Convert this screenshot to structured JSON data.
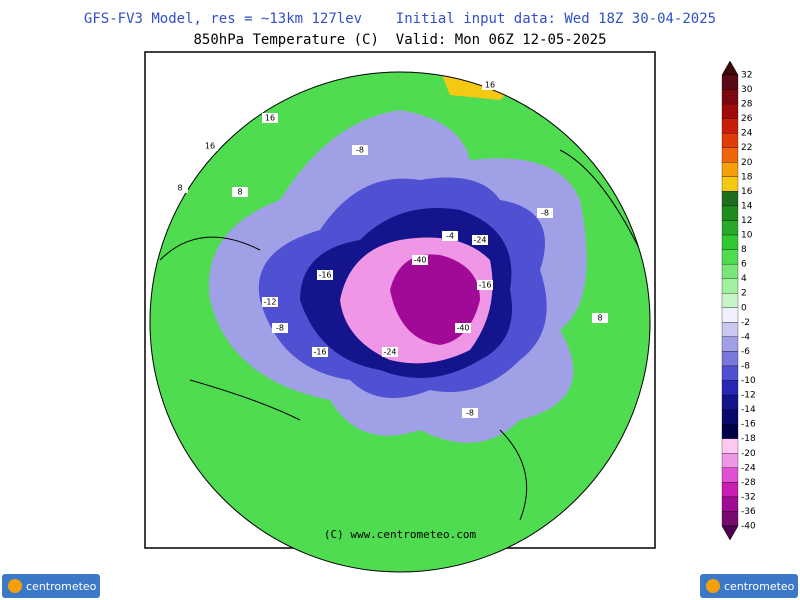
{
  "header": {
    "model_line": "GFS-FV3 Model, res = ~13km 127lev    Initial input data: Wed 18Z 30-04-2025",
    "field_line": "850hPa Temperature (C)  Valid: Mon 06Z 12-05-2025"
  },
  "map": {
    "labels": [
      "-8",
      "-8",
      "-8",
      "-8",
      "-16",
      "-16",
      "-16",
      "-24",
      "-24",
      "-40",
      "-40",
      "8",
      "8",
      "8",
      "16",
      "16",
      "16",
      "-12",
      "-4"
    ],
    "copyright": "(C) www.centrometeo.com"
  },
  "colorbar": {
    "labels": [
      32,
      30,
      28,
      26,
      24,
      22,
      20,
      18,
      16,
      14,
      12,
      10,
      8,
      6,
      4,
      2,
      0,
      -2,
      -4,
      -6,
      -8,
      -10,
      -12,
      -14,
      -16,
      -18,
      -20,
      -24,
      -28,
      -32,
      -36,
      -40
    ],
    "colors": [
      "#5a0a14",
      "#7a0a10",
      "#a00a0a",
      "#c81e0a",
      "#e03c0a",
      "#f0640a",
      "#f5a00a",
      "#f5c814",
      "#1e6e1e",
      "#1e8c1e",
      "#28aa28",
      "#32c832",
      "#50dc50",
      "#78e678",
      "#a0f0a0",
      "#c8f5c8",
      "#f0f0ff",
      "#c8c8f0",
      "#a0a0e6",
      "#7878dc",
      "#5050d2",
      "#2828b4",
      "#14148c",
      "#0a0a6e",
      "#000046",
      "#ffc8f0",
      "#f096e6",
      "#e050d2",
      "#c81eb4",
      "#a00a96",
      "#780a6e"
    ],
    "top_color": "#3c0a0a",
    "bottom_color": "#500050"
  },
  "logos": {
    "left": "centrometeo",
    "right": "centrometeo"
  }
}
